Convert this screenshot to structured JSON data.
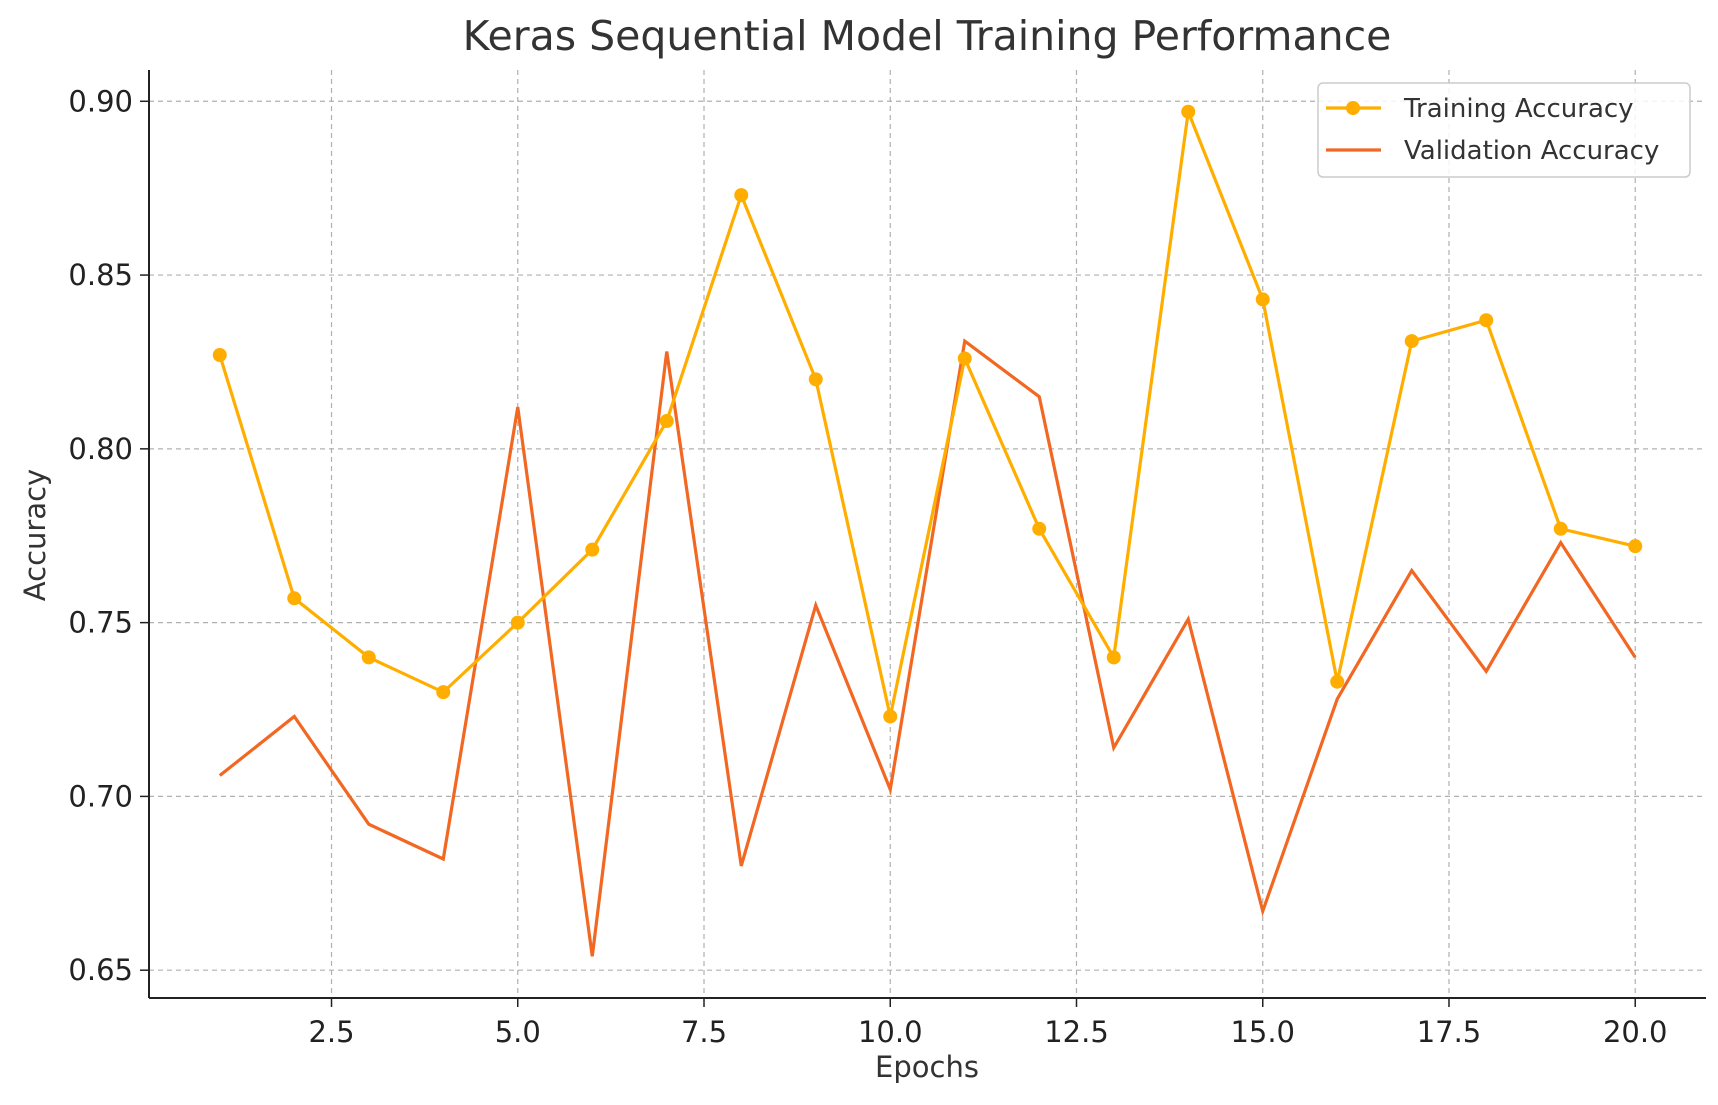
{
  "chart_data": {
    "type": "line",
    "title": "Keras Sequential Model Training Performance",
    "xlabel": "Epochs",
    "ylabel": "Accuracy",
    "xlim": [
      0.05,
      20.95
    ],
    "ylim": [
      0.642,
      0.909
    ],
    "xticks": [
      2.5,
      5.0,
      7.5,
      10.0,
      12.5,
      15.0,
      17.5,
      20.0
    ],
    "xtick_labels": [
      "2.5",
      "5.0",
      "7.5",
      "10.0",
      "12.5",
      "15.0",
      "17.5",
      "20.0"
    ],
    "yticks": [
      0.65,
      0.7,
      0.75,
      0.8,
      0.85,
      0.9
    ],
    "ytick_labels": [
      "0.65",
      "0.70",
      "0.75",
      "0.80",
      "0.85",
      "0.90"
    ],
    "grid": true,
    "legend_position": "top-right",
    "x": [
      1,
      2,
      3,
      4,
      5,
      6,
      7,
      8,
      9,
      10,
      11,
      12,
      13,
      14,
      15,
      16,
      17,
      18,
      19,
      20
    ],
    "series": [
      {
        "name": "Training Accuracy",
        "color": "#FFAE00",
        "marker": "circle",
        "values": [
          0.827,
          0.757,
          0.74,
          0.73,
          0.75,
          0.771,
          0.808,
          0.873,
          0.82,
          0.723,
          0.826,
          0.777,
          0.74,
          0.897,
          0.843,
          0.733,
          0.831,
          0.837,
          0.777,
          0.772
        ]
      },
      {
        "name": "Validation Accuracy",
        "color": "#F26722",
        "marker": "none",
        "values": [
          0.706,
          0.723,
          0.692,
          0.682,
          0.812,
          0.654,
          0.828,
          0.68,
          0.755,
          0.702,
          0.831,
          0.815,
          0.714,
          0.751,
          0.667,
          0.728,
          0.765,
          0.736,
          0.773,
          0.74
        ]
      }
    ]
  }
}
